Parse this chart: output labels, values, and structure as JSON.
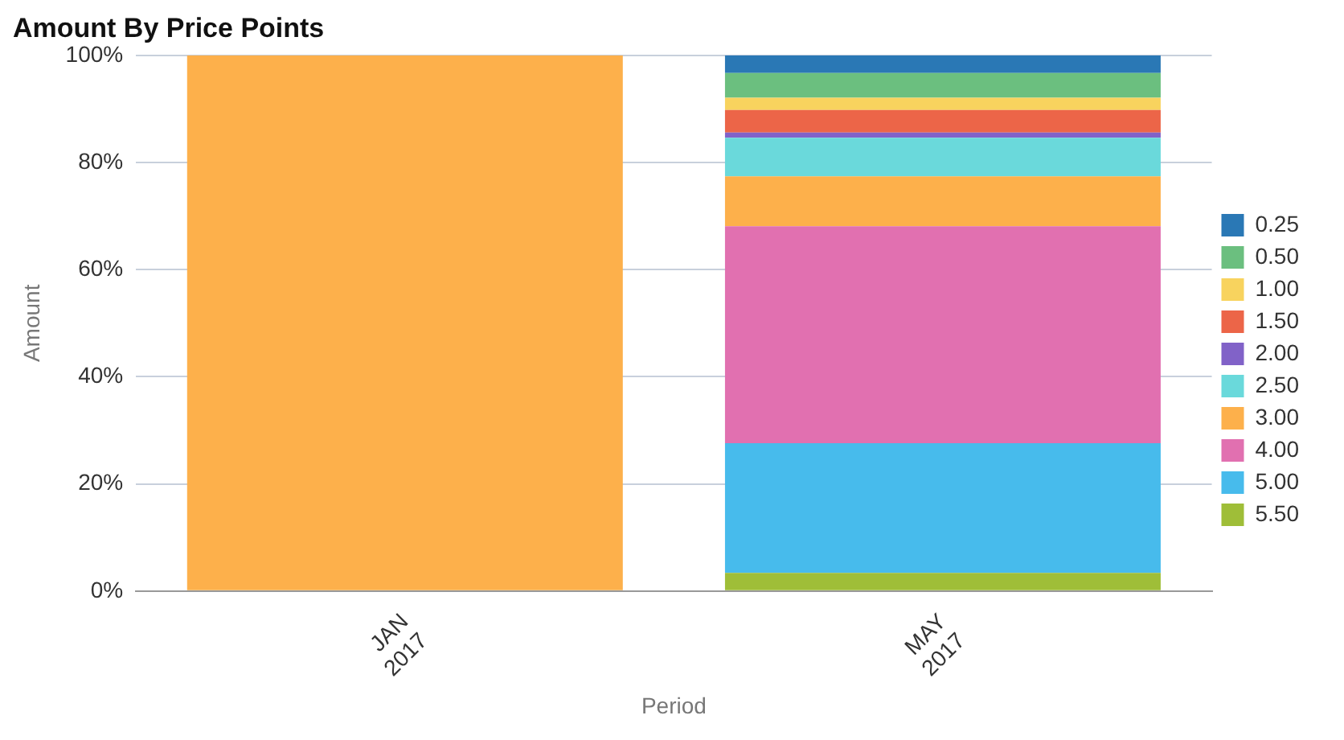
{
  "chart_data": {
    "type": "bar",
    "title": "Amount By Price Points",
    "xlabel": "Period",
    "ylabel": "Amount",
    "categories": [
      "JAN 2017",
      "MAY 2017"
    ],
    "stacked": true,
    "ylim": [
      0,
      100
    ],
    "yticks": [
      {
        "value": 0,
        "label": "0%"
      },
      {
        "value": 20,
        "label": "20%"
      },
      {
        "value": 40,
        "label": "40%"
      },
      {
        "value": 60,
        "label": "60%"
      },
      {
        "value": 80,
        "label": "80%"
      },
      {
        "value": 100,
        "label": "100%"
      }
    ],
    "grid": "y",
    "legend": "right",
    "series": [
      {
        "name": "5.50",
        "color": "#9fbe38",
        "values": [
          null,
          3.4
        ]
      },
      {
        "name": "5.00",
        "color": "#47bbec",
        "values": [
          null,
          24.2
        ]
      },
      {
        "name": "4.00",
        "color": "#e170b0",
        "values": [
          null,
          40.5
        ]
      },
      {
        "name": "3.00",
        "color": "#fdb04b",
        "values": [
          100,
          9.3
        ]
      },
      {
        "name": "2.50",
        "color": "#6ad9db",
        "values": [
          null,
          7.2
        ]
      },
      {
        "name": "2.00",
        "color": "#8162c8",
        "values": [
          null,
          1.0
        ]
      },
      {
        "name": "1.50",
        "color": "#ec6548",
        "values": [
          null,
          4.2
        ]
      },
      {
        "name": "1.00",
        "color": "#f8d35e",
        "values": [
          null,
          2.3
        ]
      },
      {
        "name": "0.50",
        "color": "#6bbf7f",
        "values": [
          null,
          4.6
        ]
      },
      {
        "name": "0.25",
        "color": "#2a78b5",
        "values": [
          null,
          3.3
        ]
      }
    ]
  }
}
